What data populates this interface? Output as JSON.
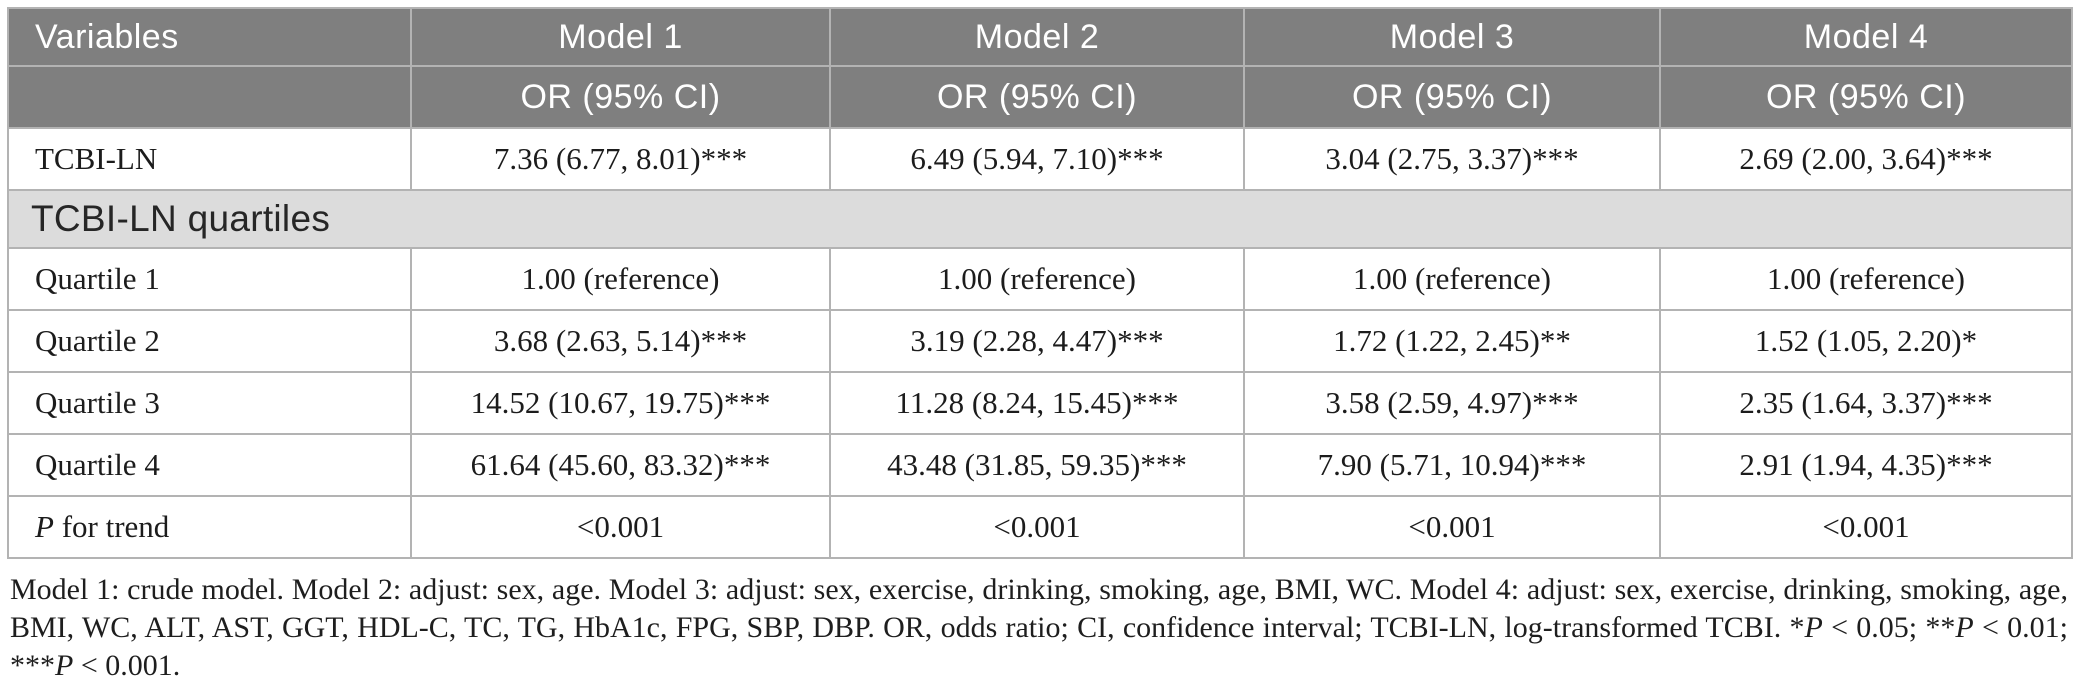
{
  "table": {
    "header": {
      "variables_label": "Variables",
      "models": [
        "Model 1",
        "Model 2",
        "Model 3",
        "Model 4"
      ],
      "or_label": [
        "OR (95% CI)",
        "OR (95% CI)",
        "OR (95% CI)",
        "OR (95% CI)"
      ]
    },
    "tcbi_row": {
      "label": "TCBI-LN",
      "values": [
        "7.36 (6.77, 8.01)***",
        "6.49 (5.94, 7.10)***",
        "3.04 (2.75, 3.37)***",
        "2.69 (2.00, 3.64)***"
      ]
    },
    "section_row": {
      "label": "TCBI-LN quartiles"
    },
    "quartile_rows": [
      {
        "label": "Quartile 1",
        "values": [
          "1.00 (reference)",
          "1.00 (reference)",
          "1.00 (reference)",
          "1.00 (reference)"
        ]
      },
      {
        "label": "Quartile 2",
        "values": [
          "3.68 (2.63, 5.14)***",
          "3.19 (2.28, 4.47)***",
          "1.72 (1.22, 2.45)**",
          "1.52 (1.05, 2.20)*"
        ]
      },
      {
        "label": "Quartile 3",
        "values": [
          "14.52 (10.67, 19.75)***",
          "11.28 (8.24, 15.45)***",
          "3.58 (2.59, 4.97)***",
          "2.35 (1.64, 3.37)***"
        ]
      },
      {
        "label": "Quartile 4",
        "values": [
          "61.64 (45.60, 83.32)***",
          "43.48 (31.85, 59.35)***",
          "7.90 (5.71, 10.94)***",
          "2.91 (1.94, 4.35)***"
        ]
      }
    ],
    "p_trend_row": {
      "label_italic": "P",
      "label_rest": " for trend",
      "values": [
        "<0.001",
        "<0.001",
        "<0.001",
        "<0.001"
      ]
    }
  },
  "colors": {
    "header_bg": "#7f7f7f",
    "header_text": "#ffffff",
    "section_bg": "#dcdcdc",
    "border": "#b3b3b3",
    "body_text": "#1c1c1c"
  },
  "footnote": {
    "segments": [
      {
        "t": "Model 1: crude model. Model 2: adjust: sex, age. Model 3: adjust: sex, exercise, drinking, smoking, age, BMI, WC. Model 4: adjust: sex, exercise, drinking, smoking, age, BMI, WC, ALT, AST, GGT, HDL-C, TC, TG, HbA1c, FPG, SBP, DBP. OR, odds ratio; CI, confidence interval; TCBI-LN, log-transformed TCBI. *",
        "i": 0
      },
      {
        "t": "P",
        "i": 1
      },
      {
        "t": " < 0.05; **",
        "i": 0
      },
      {
        "t": "P",
        "i": 1
      },
      {
        "t": " < 0.01; ***",
        "i": 0
      },
      {
        "t": "P",
        "i": 1
      },
      {
        "t": " < 0.001.",
        "i": 0
      }
    ]
  }
}
